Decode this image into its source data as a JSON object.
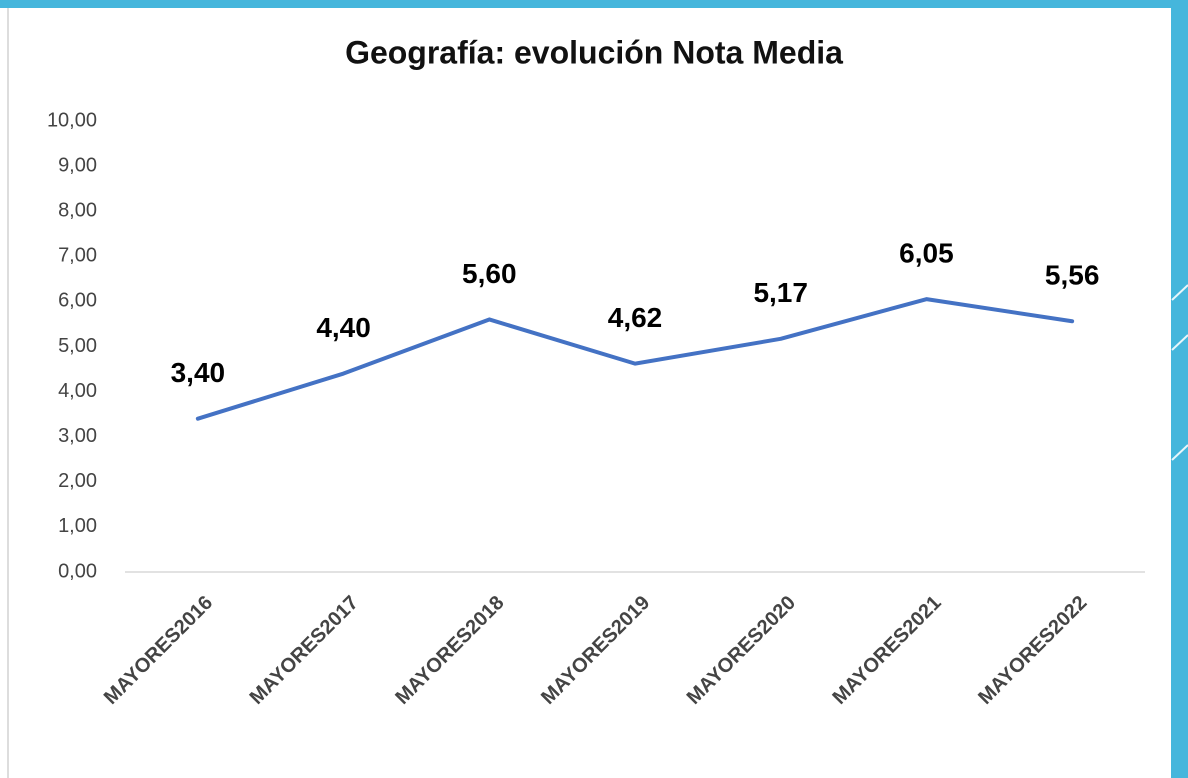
{
  "chart_data": {
    "type": "line",
    "title": "Geografía: evolución Nota Media",
    "categories": [
      "MAYORES2016",
      "MAYORES2017",
      "MAYORES2018",
      "MAYORES2019",
      "MAYORES2020",
      "MAYORES2021",
      "MAYORES2022"
    ],
    "series": [
      {
        "name": "Nota Media",
        "color": "#4472c4",
        "values": [
          3.4,
          4.4,
          5.6,
          4.62,
          5.17,
          6.05,
          5.56
        ],
        "value_labels": [
          "3,40",
          "4,40",
          "5,60",
          "4,62",
          "5,17",
          "6,05",
          "5,56"
        ]
      }
    ],
    "ylim": [
      0,
      10
    ],
    "yticks": [
      {
        "value": 0,
        "label": "0,00"
      },
      {
        "value": 1,
        "label": "1,00"
      },
      {
        "value": 2,
        "label": "2,00"
      },
      {
        "value": 3,
        "label": "3,00"
      },
      {
        "value": 4,
        "label": "4,00"
      },
      {
        "value": 5,
        "label": "5,00"
      },
      {
        "value": 6,
        "label": "6,00"
      },
      {
        "value": 7,
        "label": "7,00"
      },
      {
        "value": 8,
        "label": "8,00"
      },
      {
        "value": 9,
        "label": "9,00"
      },
      {
        "value": 10,
        "label": "10,00"
      }
    ],
    "grid": false
  }
}
